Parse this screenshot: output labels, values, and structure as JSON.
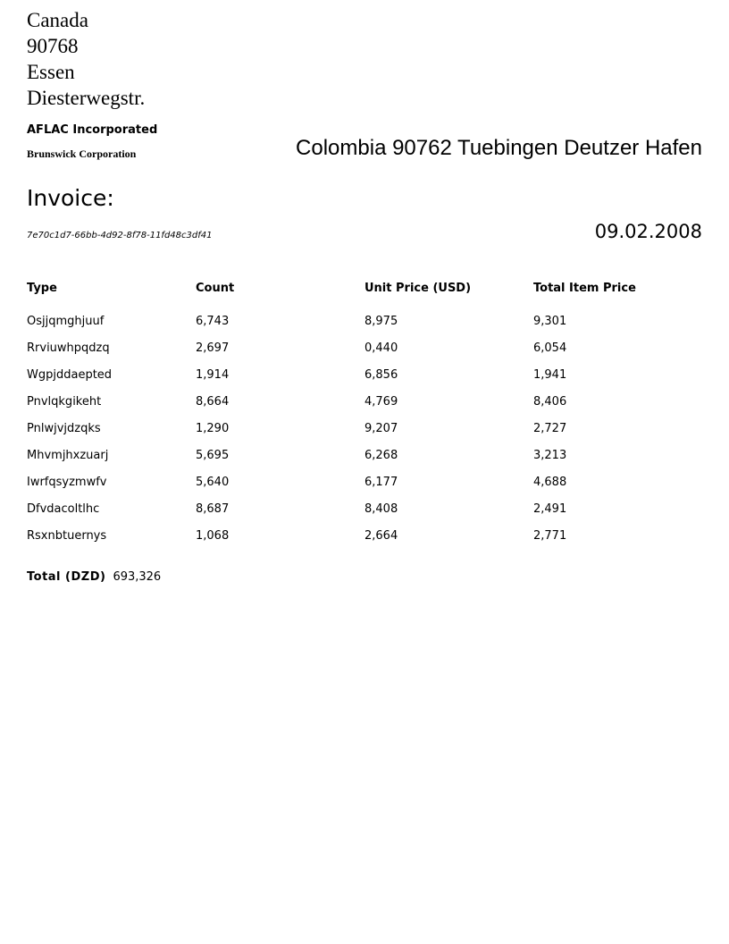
{
  "sender": {
    "address": [
      "Canada",
      "90768",
      "Essen",
      "Diesterwegstr."
    ],
    "company_primary": "AFLAC Incorporated",
    "company_secondary": "Brunswick Corporation"
  },
  "recipient": {
    "address_line": "Colombia 90762 Tuebingen Deutzer Hafen"
  },
  "invoice": {
    "title": "Invoice:",
    "id": "7e70c1d7-66bb-4d92-8f78-11fd48c3df41",
    "date": "09.02.2008"
  },
  "table": {
    "headers": [
      "Type",
      "Count",
      "Unit Price (USD)",
      "Total Item Price"
    ],
    "rows": [
      [
        "Osjjqmghjuuf",
        "6,743",
        "8,975",
        "9,301"
      ],
      [
        "Rrviuwhpqdzq",
        "2,697",
        "0,440",
        "6,054"
      ],
      [
        "Wgpjddaepted",
        "1,914",
        "6,856",
        "1,941"
      ],
      [
        "Pnvlqkgikeht",
        "8,664",
        "4,769",
        "8,406"
      ],
      [
        "Pnlwjvjdzqks",
        "1,290",
        "9,207",
        "2,727"
      ],
      [
        "Mhvmjhxzuarj",
        "5,695",
        "6,268",
        "3,213"
      ],
      [
        "Iwrfqsyzmwfv",
        "5,640",
        "6,177",
        "4,688"
      ],
      [
        "Dfvdacoltlhc",
        "8,687",
        "8,408",
        "2,491"
      ],
      [
        "Rsxnbtuernys",
        "1,068",
        "2,664",
        "2,771"
      ]
    ]
  },
  "total": {
    "label": "Total (DZD)",
    "value": "693,326"
  }
}
